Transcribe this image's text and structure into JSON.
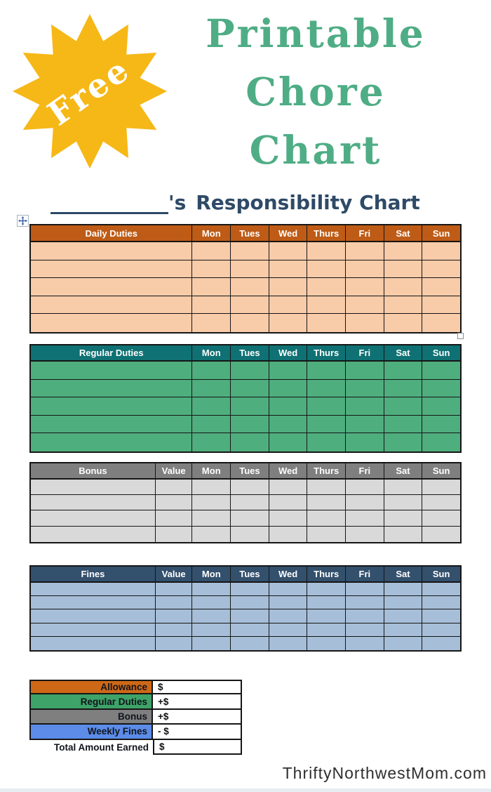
{
  "badge": {
    "text": "Free",
    "color": "#F6B817"
  },
  "title": {
    "lines": [
      "Printable",
      "Chore",
      "Chart"
    ],
    "color": "#4FAD85"
  },
  "heading": {
    "possessive": "'s",
    "text": "Responsibility Chart",
    "color": "#2E4A67"
  },
  "days": [
    "Mon",
    "Tues",
    "Wed",
    "Thurs",
    "Fri",
    "Sat",
    "Sun"
  ],
  "tables": [
    {
      "id": "daily",
      "label": "Daily Duties",
      "has_value_col": false,
      "value_label": "",
      "rows": 5,
      "header_bg": "#BE5B16",
      "body_bg": "#F8CBA9"
    },
    {
      "id": "regular",
      "label": "Regular Duties",
      "has_value_col": false,
      "value_label": "",
      "rows": 5,
      "header_bg": "#0F7173",
      "body_bg": "#4FAE7E"
    },
    {
      "id": "bonus",
      "label": "Bonus",
      "has_value_col": true,
      "value_label": "Value",
      "rows": 4,
      "header_bg": "#7F7F7F",
      "body_bg": "#D9D9D9"
    },
    {
      "id": "fines",
      "label": "Fines",
      "has_value_col": true,
      "value_label": "Value",
      "rows": 5,
      "header_bg": "#33506D",
      "body_bg": "#A6BED8"
    }
  ],
  "summary": {
    "rows": [
      {
        "label": "Allowance",
        "bg": "#CE6817",
        "value": "$",
        "total": false
      },
      {
        "label": "Regular Duties",
        "bg": "#3EA368",
        "value": "+$",
        "total": false
      },
      {
        "label": "Bonus",
        "bg": "#7F7F7F",
        "value": "+$",
        "total": false
      },
      {
        "label": "Weekly Fines",
        "bg": "#5C8CE8",
        "value": "- $",
        "total": false
      },
      {
        "label": "Total Amount Earned",
        "bg": "",
        "value": "$",
        "total": true
      }
    ]
  },
  "footer": {
    "watermark": "ThriftyNorthwestMom.com"
  }
}
